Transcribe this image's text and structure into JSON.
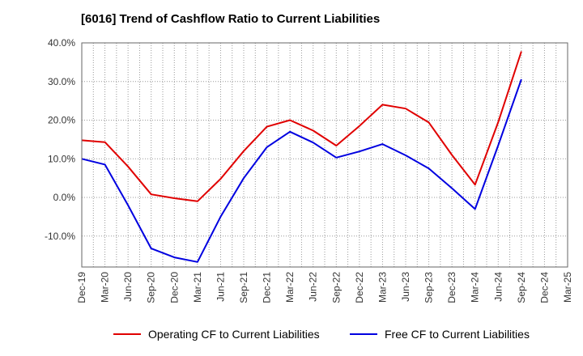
{
  "chart_data": {
    "type": "line",
    "title": "[6016]  Trend of Cashflow Ratio to Current Liabilities",
    "xlabel": "",
    "ylabel": "",
    "ylim": [
      -18,
      40
    ],
    "y_ticks": [
      40,
      30,
      20,
      10,
      0,
      -10
    ],
    "y_tick_labels": [
      "40.0%",
      "30.0%",
      "20.0%",
      "10.0%",
      "0.0%",
      "-10.0%"
    ],
    "categories": [
      "Dec-19",
      "Mar-20",
      "Jun-20",
      "Sep-20",
      "Dec-20",
      "Mar-21",
      "Jun-21",
      "Sep-21",
      "Dec-21",
      "Mar-22",
      "Jun-22",
      "Sep-22",
      "Dec-22",
      "Mar-23",
      "Jun-23",
      "Sep-23",
      "Dec-23",
      "Mar-24",
      "Jun-24",
      "Sep-24",
      "Dec-24",
      "Mar-25"
    ],
    "grid": true,
    "legend_position": "bottom",
    "series": [
      {
        "name": "Operating CF to Current Liabilities",
        "color": "#e00000",
        "values": [
          14.8,
          14.3,
          8.0,
          0.8,
          -0.2,
          -1.0,
          4.8,
          12.0,
          18.3,
          20.0,
          17.3,
          13.4,
          18.5,
          24.0,
          23.0,
          19.4,
          11.0,
          3.3,
          19.5,
          37.8,
          null,
          null
        ]
      },
      {
        "name": "Free CF to Current Liabilities",
        "color": "#0000e0",
        "values": [
          10.0,
          8.5,
          -2.0,
          -13.2,
          -15.5,
          -16.7,
          -5.0,
          5.0,
          13.0,
          17.0,
          14.2,
          10.3,
          11.9,
          13.8,
          10.9,
          7.5,
          2.4,
          -3.0,
          13.5,
          30.6,
          null,
          null
        ]
      }
    ]
  }
}
